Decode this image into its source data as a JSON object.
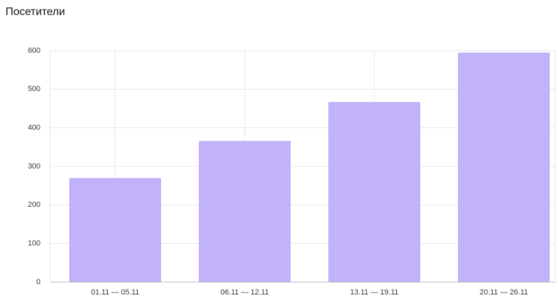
{
  "chart_data": {
    "type": "bar",
    "title": "Посетители",
    "categories": [
      "01.11 — 05.11",
      "06.11 — 12.11",
      "13.11 — 19.11",
      "20.11 — 26.11"
    ],
    "values": [
      270,
      366,
      467,
      595
    ],
    "color": "#c2b2fa",
    "ylim": [
      0,
      600
    ],
    "yticks": [
      0,
      100,
      200,
      300,
      400,
      500,
      600
    ],
    "grid": true
  }
}
